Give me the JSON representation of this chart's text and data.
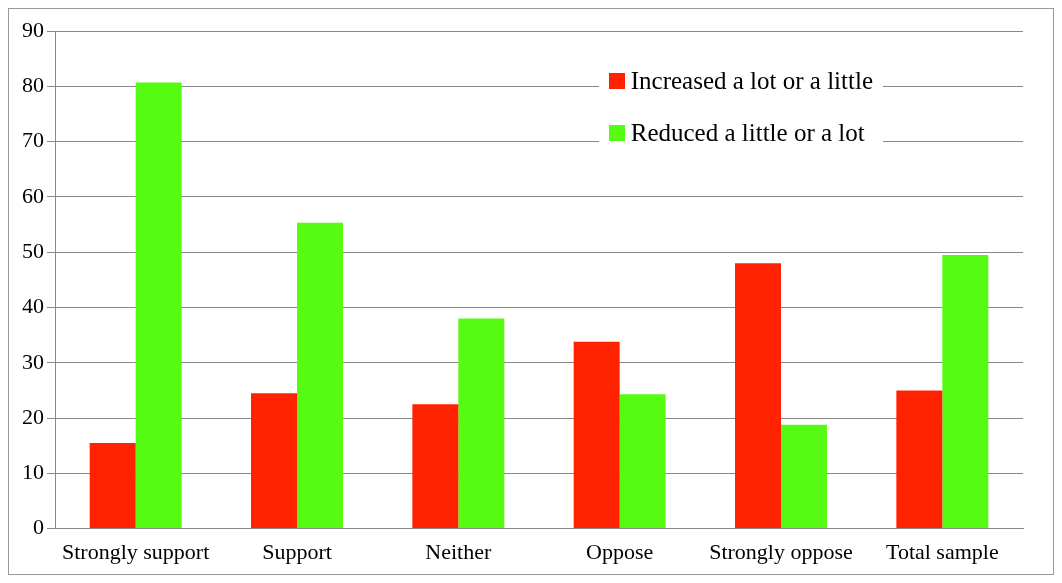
{
  "chart_data": {
    "type": "bar",
    "categories": [
      "Strongly support",
      "Support",
      "Neither",
      "Oppose",
      "Strongly oppose",
      "Total sample"
    ],
    "series": [
      {
        "name": "Increased a lot or a little",
        "color": "#ff2200",
        "values": [
          15.5,
          24.5,
          22.5,
          33.8,
          48,
          25
        ]
      },
      {
        "name": "Reduced a little or a lot",
        "color": "#55fb11",
        "values": [
          80.7,
          55.3,
          38,
          24.3,
          18.8,
          49.5
        ]
      }
    ],
    "ylim": [
      0,
      90
    ],
    "yticks": [
      0,
      10,
      20,
      30,
      40,
      50,
      60,
      70,
      80,
      90
    ],
    "grid": "y",
    "legend": "top right"
  }
}
